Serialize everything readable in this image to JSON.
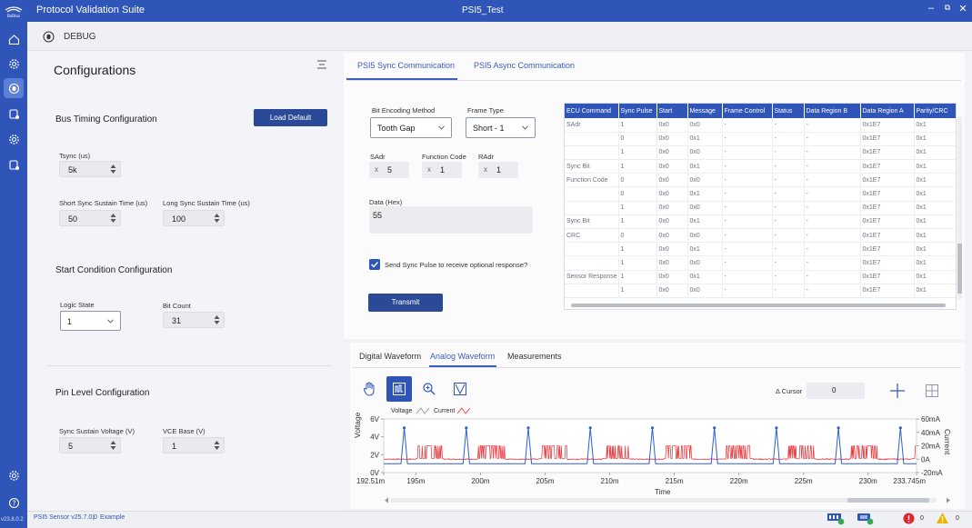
{
  "titlebar": {
    "app_title": "Protocol Validation Suite",
    "doc_title": "PSI5_Test",
    "minimize": "–",
    "restore": "⧉",
    "close": "✕"
  },
  "leftrail": {
    "version": "v23.8.0.2"
  },
  "debugbar": {
    "label": "DEBUG"
  },
  "configurations": {
    "title": "Configurations",
    "bus_timing": {
      "title": "Bus Timing Configuration",
      "load_default": "Load Default",
      "tsync_label": "Tsync (us)",
      "tsync_value": "5k",
      "short_sync_label": "Short Sync Sustain Time (us)",
      "short_sync_value": "50",
      "long_sync_label": "Long Sync Sustain Time (us)",
      "long_sync_value": "100"
    },
    "start_condition": {
      "title": "Start Condition Configuration",
      "logic_state_label": "Logic State",
      "logic_state_value": "1",
      "bit_count_label": "Bit Count",
      "bit_count_value": "31"
    },
    "pin_level": {
      "title": "Pin Level Configuration",
      "sync_voltage_label": "Sync Sustain Voltage (V)",
      "sync_voltage_value": "5",
      "vce_base_label": "VCE Base (V)",
      "vce_base_value": "1"
    }
  },
  "comm_tabs": {
    "sync": "PSI5 Sync Communication",
    "async": "PSI5 Async Communication",
    "active": "sync"
  },
  "sync_form": {
    "bit_encoding_label": "Bit Encoding Method",
    "bit_encoding_value": "Tooth Gap",
    "frame_type_label": "Frame Type",
    "frame_type_value": "Short - 1",
    "sadr_label": "SAdr",
    "sadr_value": "5",
    "function_code_label": "Function Code",
    "function_code_value": "1",
    "radr_label": "RAdr",
    "radr_value": "1",
    "x_mark": "x",
    "data_label": "Data (Hex)",
    "data_value": "55",
    "send_sync_label": "Send Sync Pulse to receive optional response?",
    "send_sync_checked": true,
    "transmit": "Transmit"
  },
  "grid": {
    "columns": [
      "ECU Command",
      "Sync Pulse",
      "Start",
      "Message",
      "Frame Control",
      "Status",
      "Data Region B",
      "Data Region A",
      "Parity/CRC"
    ],
    "rows": [
      [
        "SAdr",
        "1",
        "0x0",
        "0x0",
        "-",
        "-",
        "-",
        "0x1E7",
        "0x1"
      ],
      [
        "",
        "0",
        "0x0",
        "0x1",
        "-",
        "-",
        "-",
        "0x1E7",
        "0x1"
      ],
      [
        "",
        "1",
        "0x0",
        "0x0",
        "-",
        "-",
        "-",
        "0x1E7",
        "0x1"
      ],
      [
        "Sync Bit",
        "1",
        "0x0",
        "0x1",
        "-",
        "-",
        "-",
        "0x1E7",
        "0x1"
      ],
      [
        "Function Code",
        "0",
        "0x0",
        "0x0",
        "-",
        "-",
        "-",
        "0x1E7",
        "0x1"
      ],
      [
        "",
        "0",
        "0x0",
        "0x1",
        "-",
        "-",
        "-",
        "0x1E7",
        "0x1"
      ],
      [
        "",
        "1",
        "0x0",
        "0x0",
        "-",
        "-",
        "-",
        "0x1E7",
        "0x1"
      ],
      [
        "Sync Bit",
        "1",
        "0x0",
        "0x1",
        "-",
        "-",
        "-",
        "0x1E7",
        "0x1"
      ],
      [
        "CRC",
        "0",
        "0x0",
        "0x0",
        "-",
        "-",
        "-",
        "0x1E7",
        "0x1"
      ],
      [
        "",
        "1",
        "0x0",
        "0x1",
        "-",
        "-",
        "-",
        "0x1E7",
        "0x1"
      ],
      [
        "",
        "1",
        "0x0",
        "0x0",
        "-",
        "-",
        "-",
        "0x1E7",
        "0x1"
      ],
      [
        "Sensor Response",
        "1",
        "0x0",
        "0x1",
        "-",
        "-",
        "-",
        "0x1E7",
        "0x1"
      ],
      [
        "",
        "1",
        "0x0",
        "0x0",
        "-",
        "-",
        "-",
        "0x1E7",
        "0x1"
      ]
    ]
  },
  "wave_tabs": {
    "digital": "Digital Waveform",
    "analog": "Analog Waveform",
    "measurements": "Measurements",
    "active": "analog"
  },
  "wave_tools": {
    "cursor_label": "Δ Cursor",
    "cursor_value": "0",
    "active_tool": "waveform"
  },
  "chart_data": {
    "type": "line",
    "xlabel": "Time",
    "ylabel_left": "Voltage",
    "ylabel_right": "Current",
    "legend": [
      "Voltage",
      "Current"
    ],
    "x_range": [
      "192.51m",
      "233.745m"
    ],
    "x_ticks": [
      "192.51m",
      "195m",
      "200m",
      "205m",
      "210m",
      "215m",
      "220m",
      "225m",
      "230m",
      "233.745m"
    ],
    "y_left_ticks": [
      "6V",
      "4V",
      "2V",
      "0V"
    ],
    "y_left_range": [
      0,
      6
    ],
    "y_right_ticks": [
      "60mA",
      "40mA",
      "20mA",
      "0A",
      "-20mA"
    ],
    "y_right_range": [
      -20,
      60
    ],
    "series": [
      {
        "name": "Voltage",
        "color": "#2f5fd0",
        "baseline": 1,
        "pulse_peak": 5,
        "pulse_times_ms": [
          194.1,
          198.9,
          203.7,
          208.5,
          213.3,
          218.1,
          222.9,
          227.7,
          232.5
        ]
      },
      {
        "name": "Current",
        "color": "#e8454a",
        "baseline_ma": 0,
        "burst_ma": 20
      }
    ],
    "legend_placement": "top-left"
  },
  "statusbar": {
    "project": "PSI5 Sensor v25.7.0.0",
    "separator": "|",
    "example": "Example",
    "error_count": "0",
    "warning_count": "0"
  },
  "colors": {
    "brand": "#2f55b8",
    "button": "#2a4a98",
    "error": "#d9282f",
    "warning": "#f0b400"
  }
}
